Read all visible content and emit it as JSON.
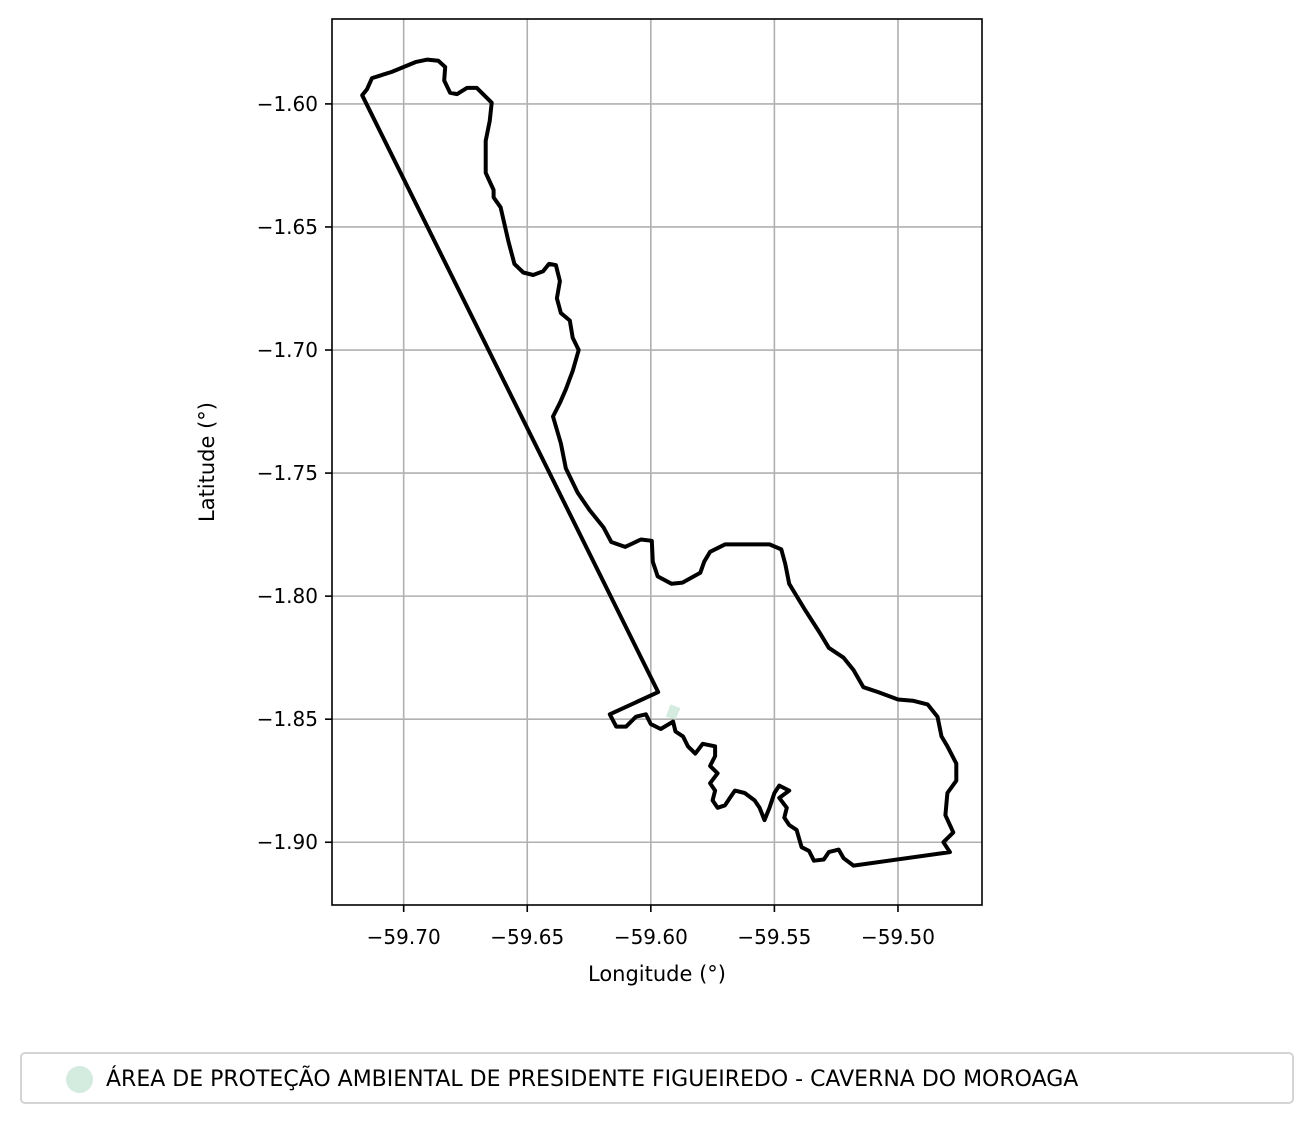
{
  "chart_data": {
    "type": "map",
    "xlabel": "Longitude (°)",
    "ylabel": "Latitude (°)",
    "xlim": [
      -59.729,
      -59.466
    ],
    "ylim": [
      -1.9255,
      -1.5655
    ],
    "grid": true,
    "x_ticks": [
      -59.7,
      -59.65,
      -59.6,
      -59.55,
      -59.5
    ],
    "x_tick_labels": [
      "−59.70",
      "−59.65",
      "−59.60",
      "−59.55",
      "−59.50"
    ],
    "y_ticks": [
      -1.6,
      -1.65,
      -1.7,
      -1.75,
      -1.8,
      -1.85,
      -1.9
    ],
    "y_tick_labels": [
      "−1.60",
      "−1.65",
      "−1.70",
      "−1.75",
      "−1.80",
      "−1.85",
      "−1.90"
    ],
    "outline_color": "#000000",
    "fill_color": "#d4ebe0",
    "legend": {
      "position": "bottom",
      "entries": [
        {
          "label": "ÁREA DE PROTEÇÃO AMBIENTAL DE PRESIDENTE FIGUEIREDO - CAVERNA DO MOROAGA",
          "color": "#d4ebe0"
        }
      ]
    },
    "boundary_lonlat": [
      [
        -59.7168,
        -1.5965
      ],
      [
        -59.7148,
        -1.594
      ],
      [
        -59.7128,
        -1.5895
      ],
      [
        -59.7048,
        -1.587
      ],
      [
        -59.6952,
        -1.583
      ],
      [
        -59.6904,
        -1.582
      ],
      [
        -59.686,
        -1.5825
      ],
      [
        -59.6832,
        -1.585
      ],
      [
        -59.6836,
        -1.5905
      ],
      [
        -59.6812,
        -1.5955
      ],
      [
        -59.6784,
        -1.596
      ],
      [
        -59.6744,
        -1.5935
      ],
      [
        -59.6704,
        -1.5935
      ],
      [
        -59.6644,
        -1.5995
      ],
      [
        -59.6652,
        -1.607
      ],
      [
        -59.6668,
        -1.615
      ],
      [
        -59.6668,
        -1.628
      ],
      [
        -59.6636,
        -1.635
      ],
      [
        -59.6636,
        -1.638
      ],
      [
        -59.6608,
        -1.642
      ],
      [
        -59.6576,
        -1.656
      ],
      [
        -59.6552,
        -1.665
      ],
      [
        -59.6516,
        -1.6685
      ],
      [
        -59.6476,
        -1.6695
      ],
      [
        -59.6436,
        -1.668
      ],
      [
        -59.6412,
        -1.665
      ],
      [
        -59.6384,
        -1.6655
      ],
      [
        -59.6368,
        -1.672
      ],
      [
        -59.638,
        -1.679
      ],
      [
        -59.6364,
        -1.685
      ],
      [
        -59.6328,
        -1.688
      ],
      [
        -59.6316,
        -1.695
      ],
      [
        -59.6292,
        -1.7
      ],
      [
        -59.6316,
        -1.7085
      ],
      [
        -59.6344,
        -1.716
      ],
      [
        -59.6368,
        -1.7215
      ],
      [
        -59.6396,
        -1.727
      ],
      [
        -59.6364,
        -1.738
      ],
      [
        -59.6344,
        -1.748
      ],
      [
        -59.6296,
        -1.758
      ],
      [
        -59.6248,
        -1.765
      ],
      [
        -59.6192,
        -1.772
      ],
      [
        -59.616,
        -1.778
      ],
      [
        -59.6104,
        -1.78
      ],
      [
        -59.604,
        -1.777
      ],
      [
        -59.5996,
        -1.7775
      ],
      [
        -59.5992,
        -1.786
      ],
      [
        -59.5972,
        -1.792
      ],
      [
        -59.5916,
        -1.795
      ],
      [
        -59.5872,
        -1.7945
      ],
      [
        -59.58,
        -1.7905
      ],
      [
        -59.5784,
        -1.786
      ],
      [
        -59.576,
        -1.782
      ],
      [
        -59.57,
        -1.779
      ],
      [
        -59.56,
        -1.779
      ],
      [
        -59.552,
        -1.779
      ],
      [
        -59.5472,
        -1.781
      ],
      [
        -59.5456,
        -1.787
      ],
      [
        -59.544,
        -1.795
      ],
      [
        -59.538,
        -1.805
      ],
      [
        -59.5316,
        -1.815
      ],
      [
        -59.528,
        -1.821
      ],
      [
        -59.522,
        -1.825
      ],
      [
        -59.518,
        -1.83
      ],
      [
        -59.514,
        -1.837
      ],
      [
        -59.508,
        -1.839
      ],
      [
        -59.5,
        -1.842
      ],
      [
        -59.494,
        -1.8425
      ],
      [
        -59.488,
        -1.844
      ],
      [
        -59.484,
        -1.849
      ],
      [
        -59.4824,
        -1.857
      ],
      [
        -59.48,
        -1.861
      ],
      [
        -59.4764,
        -1.868
      ],
      [
        -59.4764,
        -1.875
      ],
      [
        -59.48,
        -1.88
      ],
      [
        -59.4808,
        -1.889
      ],
      [
        -59.4776,
        -1.896
      ],
      [
        -59.4816,
        -1.9
      ],
      [
        -59.479,
        -1.904
      ],
      [
        -59.518,
        -1.9095
      ],
      [
        -59.522,
        -1.9065
      ],
      [
        -59.524,
        -1.903
      ],
      [
        -59.528,
        -1.904
      ],
      [
        -59.53,
        -1.907
      ],
      [
        -59.534,
        -1.9075
      ],
      [
        -59.536,
        -1.9035
      ],
      [
        -59.539,
        -1.902
      ],
      [
        -59.541,
        -1.895
      ],
      [
        -59.544,
        -1.893
      ],
      [
        -59.546,
        -1.89
      ],
      [
        -59.545,
        -1.886
      ],
      [
        -59.548,
        -1.882
      ],
      [
        -59.544,
        -1.879
      ],
      [
        -59.548,
        -1.877
      ],
      [
        -59.55,
        -1.88
      ],
      [
        -59.552,
        -1.886
      ],
      [
        -59.554,
        -1.891
      ],
      [
        -59.556,
        -1.886
      ],
      [
        -59.558,
        -1.883
      ],
      [
        -59.562,
        -1.88
      ],
      [
        -59.566,
        -1.879
      ],
      [
        -59.568,
        -1.882
      ],
      [
        -59.57,
        -1.885
      ],
      [
        -59.573,
        -1.886
      ],
      [
        -59.575,
        -1.883
      ],
      [
        -59.574,
        -1.879
      ],
      [
        -59.576,
        -1.876
      ],
      [
        -59.573,
        -1.872
      ],
      [
        -59.576,
        -1.869
      ],
      [
        -59.574,
        -1.865
      ],
      [
        -59.574,
        -1.861
      ],
      [
        -59.579,
        -1.86
      ],
      [
        -59.582,
        -1.864
      ],
      [
        -59.585,
        -1.861
      ],
      [
        -59.587,
        -1.857
      ],
      [
        -59.59,
        -1.855
      ],
      [
        -59.591,
        -1.851
      ],
      [
        -59.596,
        -1.854
      ],
      [
        -59.6,
        -1.852
      ],
      [
        -59.602,
        -1.848
      ],
      [
        -59.606,
        -1.849
      ],
      [
        -59.61,
        -1.853
      ],
      [
        -59.614,
        -1.853
      ],
      [
        -59.6166,
        -1.848
      ],
      [
        -59.597,
        -1.839
      ],
      [
        -59.7168,
        -1.5965
      ]
    ]
  }
}
